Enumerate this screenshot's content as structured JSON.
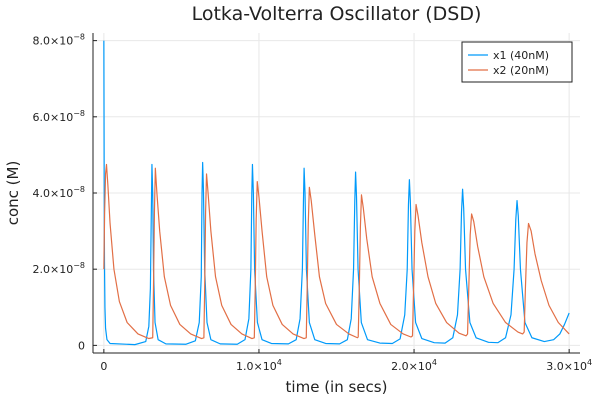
{
  "chart_data": {
    "type": "line",
    "title": "Lotka-Volterra Oscillator (DSD)",
    "xlabel": "time (in secs)",
    "ylabel": "conc (M)",
    "xlim": [
      -700,
      30700
    ],
    "ylim": [
      -2e-09,
      8.2e-08
    ],
    "grid": true,
    "legend_position": "top-right",
    "x_ticks": [
      {
        "value": 0,
        "base": "0",
        "exp": ""
      },
      {
        "value": 10000,
        "base": "1.0×10",
        "exp": "4"
      },
      {
        "value": 20000,
        "base": "2.0×10",
        "exp": "4"
      },
      {
        "value": 30000,
        "base": "3.0×10",
        "exp": "4"
      }
    ],
    "y_ticks": [
      {
        "value": 0,
        "base": "0",
        "exp": ""
      },
      {
        "value": 2e-08,
        "base": "2.0×10",
        "exp": "−8"
      },
      {
        "value": 4e-08,
        "base": "4.0×10",
        "exp": "−8"
      },
      {
        "value": 6e-08,
        "base": "6.0×10",
        "exp": "−8"
      },
      {
        "value": 8e-08,
        "base": "8.0×10",
        "exp": "−8"
      }
    ],
    "series": [
      {
        "name": "x1 (40nM)",
        "color": "#009AFA",
        "points": [
          [
            0,
            8e-08
          ],
          [
            20,
            4.5e-08
          ],
          [
            40,
            2.2e-08
          ],
          [
            70,
            1e-08
          ],
          [
            110,
            4.5e-09
          ],
          [
            200,
            1.5e-09
          ],
          [
            400,
            5e-10
          ],
          [
            2000,
            2e-10
          ],
          [
            2700,
            1e-09
          ],
          [
            2900,
            5e-09
          ],
          [
            3000,
            1.5e-08
          ],
          [
            3060,
            3.5e-08
          ],
          [
            3100,
            4.75e-08
          ],
          [
            3150,
            4e-08
          ],
          [
            3200,
            2e-08
          ],
          [
            3300,
            6e-09
          ],
          [
            3500,
            1.5e-09
          ],
          [
            4000,
            4e-10
          ],
          [
            5300,
            3e-10
          ],
          [
            5900,
            1.2e-09
          ],
          [
            6150,
            6e-09
          ],
          [
            6280,
            1.8e-08
          ],
          [
            6330,
            4e-08
          ],
          [
            6370,
            4.8e-08
          ],
          [
            6420,
            4.1e-08
          ],
          [
            6500,
            2e-08
          ],
          [
            6650,
            6e-09
          ],
          [
            6900,
            1.5e-09
          ],
          [
            7500,
            4e-10
          ],
          [
            8600,
            3e-10
          ],
          [
            9100,
            1.5e-09
          ],
          [
            9350,
            7e-09
          ],
          [
            9480,
            2e-08
          ],
          [
            9540,
            4e-08
          ],
          [
            9580,
            4.75e-08
          ],
          [
            9640,
            4e-08
          ],
          [
            9720,
            2e-08
          ],
          [
            9900,
            6e-09
          ],
          [
            10200,
            1.5e-09
          ],
          [
            10800,
            5e-10
          ],
          [
            11900,
            4e-10
          ],
          [
            12400,
            1.5e-09
          ],
          [
            12650,
            7e-09
          ],
          [
            12800,
            2e-08
          ],
          [
            12870,
            3.8e-08
          ],
          [
            12910,
            4.65e-08
          ],
          [
            12970,
            4e-08
          ],
          [
            13060,
            2e-08
          ],
          [
            13250,
            6e-09
          ],
          [
            13600,
            1.5e-09
          ],
          [
            14300,
            5e-10
          ],
          [
            15200,
            4e-10
          ],
          [
            15700,
            1.5e-09
          ],
          [
            15950,
            7e-09
          ],
          [
            16100,
            2e-08
          ],
          [
            16180,
            3.8e-08
          ],
          [
            16230,
            4.55e-08
          ],
          [
            16290,
            3.9e-08
          ],
          [
            16390,
            2e-08
          ],
          [
            16600,
            6e-09
          ],
          [
            17000,
            1.5e-09
          ],
          [
            17800,
            6e-10
          ],
          [
            18600,
            5e-10
          ],
          [
            19100,
            1.7e-09
          ],
          [
            19400,
            8e-09
          ],
          [
            19560,
            2e-08
          ],
          [
            19640,
            3.7e-08
          ],
          [
            19700,
            4.35e-08
          ],
          [
            19760,
            3.8e-08
          ],
          [
            19870,
            2e-08
          ],
          [
            20100,
            6e-09
          ],
          [
            20500,
            1.8e-09
          ],
          [
            21300,
            7e-10
          ],
          [
            22000,
            6e-10
          ],
          [
            22500,
            2e-09
          ],
          [
            22800,
            8e-09
          ],
          [
            22970,
            2e-08
          ],
          [
            23060,
            3.5e-08
          ],
          [
            23130,
            4.1e-08
          ],
          [
            23200,
            3.6e-08
          ],
          [
            23320,
            2e-08
          ],
          [
            23600,
            6e-09
          ],
          [
            24000,
            2e-09
          ],
          [
            24800,
            8e-10
          ],
          [
            25400,
            7e-10
          ],
          [
            25900,
            2e-09
          ],
          [
            26250,
            8e-09
          ],
          [
            26450,
            2e-08
          ],
          [
            26560,
            3.3e-08
          ],
          [
            26640,
            3.8e-08
          ],
          [
            26720,
            3.4e-08
          ],
          [
            26860,
            2e-08
          ],
          [
            27150,
            6e-09
          ],
          [
            27600,
            2e-09
          ],
          [
            28400,
            1e-09
          ],
          [
            29000,
            1.5e-09
          ],
          [
            29400,
            3e-09
          ],
          [
            29700,
            5.5e-09
          ],
          [
            30000,
            8.5e-09
          ]
        ]
      },
      {
        "name": "x2 (20nM)",
        "color": "#E26F46",
        "points": [
          [
            0,
            2e-08
          ],
          [
            50,
            3.5e-08
          ],
          [
            110,
            4.5e-08
          ],
          [
            170,
            4.75e-08
          ],
          [
            260,
            4.2e-08
          ],
          [
            400,
            3.2e-08
          ],
          [
            650,
            2e-08
          ],
          [
            1000,
            1.15e-08
          ],
          [
            1500,
            6e-09
          ],
          [
            2200,
            3e-09
          ],
          [
            2900,
            1.8e-09
          ],
          [
            3150,
            2e-09
          ],
          [
            3200,
            1.5e-08
          ],
          [
            3260,
            3.5e-08
          ],
          [
            3320,
            4.65e-08
          ],
          [
            3420,
            4e-08
          ],
          [
            3600,
            3e-08
          ],
          [
            3900,
            1.8e-08
          ],
          [
            4300,
            1.05e-08
          ],
          [
            4900,
            5.5e-09
          ],
          [
            5600,
            3e-09
          ],
          [
            6300,
            1.8e-09
          ],
          [
            6450,
            2e-09
          ],
          [
            6500,
            1.5e-08
          ],
          [
            6560,
            3.5e-08
          ],
          [
            6620,
            4.5e-08
          ],
          [
            6720,
            4e-08
          ],
          [
            6900,
            3e-08
          ],
          [
            7200,
            1.8e-08
          ],
          [
            7600,
            1.05e-08
          ],
          [
            8200,
            5.5e-09
          ],
          [
            8900,
            3e-09
          ],
          [
            9550,
            1.8e-09
          ],
          [
            9700,
            2e-09
          ],
          [
            9760,
            1.5e-08
          ],
          [
            9820,
            3.3e-08
          ],
          [
            9890,
            4.3e-08
          ],
          [
            10000,
            3.9e-08
          ],
          [
            10200,
            3e-08
          ],
          [
            10500,
            1.8e-08
          ],
          [
            10900,
            1.05e-08
          ],
          [
            11500,
            5.5e-09
          ],
          [
            12200,
            3e-09
          ],
          [
            12900,
            1.8e-09
          ],
          [
            13050,
            2e-09
          ],
          [
            13110,
            1.5e-08
          ],
          [
            13180,
            3.2e-08
          ],
          [
            13250,
            4.15e-08
          ],
          [
            13370,
            3.8e-08
          ],
          [
            13600,
            2.9e-08
          ],
          [
            13900,
            1.8e-08
          ],
          [
            14300,
            1.1e-08
          ],
          [
            15000,
            5.5e-09
          ],
          [
            15800,
            3e-09
          ],
          [
            16350,
            2e-09
          ],
          [
            16400,
            2.2e-09
          ],
          [
            16470,
            1.5e-08
          ],
          [
            16540,
            3.1e-08
          ],
          [
            16610,
            3.95e-08
          ],
          [
            16730,
            3.6e-08
          ],
          [
            16950,
            2.8e-08
          ],
          [
            17300,
            1.8e-08
          ],
          [
            17800,
            1.1e-08
          ],
          [
            18500,
            5.5e-09
          ],
          [
            19300,
            3e-09
          ],
          [
            19800,
            2.2e-09
          ],
          [
            19900,
            2.5e-09
          ],
          [
            19970,
            1.5e-08
          ],
          [
            20050,
            3e-08
          ],
          [
            20130,
            3.7e-08
          ],
          [
            20260,
            3.4e-08
          ],
          [
            20500,
            2.7e-08
          ],
          [
            20900,
            1.8e-08
          ],
          [
            21400,
            1.1e-08
          ],
          [
            22100,
            6e-09
          ],
          [
            22900,
            3.2e-09
          ],
          [
            23350,
            2.5e-09
          ],
          [
            23450,
            3e-09
          ],
          [
            23530,
            1.5e-08
          ],
          [
            23620,
            2.9e-08
          ],
          [
            23710,
            3.45e-08
          ],
          [
            23850,
            3.25e-08
          ],
          [
            24100,
            2.6e-08
          ],
          [
            24500,
            1.8e-08
          ],
          [
            25100,
            1.1e-08
          ],
          [
            25900,
            6e-09
          ],
          [
            26700,
            3.5e-09
          ],
          [
            27000,
            3e-09
          ],
          [
            27100,
            3.5e-09
          ],
          [
            27180,
            1.5e-08
          ],
          [
            27280,
            2.7e-08
          ],
          [
            27380,
            3.2e-08
          ],
          [
            27550,
            3e-08
          ],
          [
            27800,
            2.4e-08
          ],
          [
            28200,
            1.7e-08
          ],
          [
            28700,
            1.05e-08
          ],
          [
            29300,
            6e-09
          ],
          [
            30000,
            3e-09
          ]
        ]
      }
    ]
  }
}
